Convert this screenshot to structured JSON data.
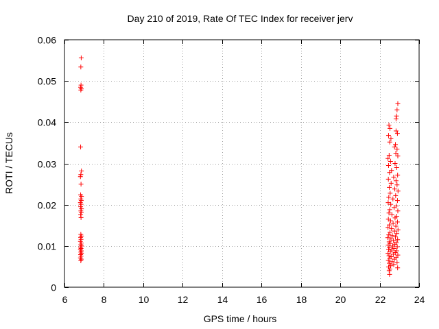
{
  "chart_data": {
    "type": "scatter",
    "title": "Day 210 of 2019, Rate Of TEC Index for receiver jerv",
    "xlabel": "GPS time / hours",
    "ylabel": "ROTI / TECUs",
    "xlim": [
      6,
      24
    ],
    "ylim": [
      0,
      0.06
    ],
    "xticks": [
      6,
      8,
      10,
      12,
      14,
      16,
      18,
      20,
      22,
      24
    ],
    "xtick_labels": [
      "6",
      "8",
      "10",
      "12",
      "14",
      "16",
      "18",
      "20",
      "22",
      "24"
    ],
    "yticks": [
      0,
      0.01,
      0.02,
      0.03,
      0.04,
      0.05,
      0.06
    ],
    "ytick_labels": [
      "0",
      "0.01",
      "0.02",
      "0.03",
      "0.04",
      "0.05",
      "0.06"
    ],
    "grid": true,
    "marker": "+",
    "color": "#ff0000",
    "series": [
      {
        "name": "ROTI",
        "points": [
          [
            6.85,
            0.0556
          ],
          [
            6.83,
            0.0534
          ],
          [
            6.84,
            0.049
          ],
          [
            6.82,
            0.0485
          ],
          [
            6.85,
            0.0481
          ],
          [
            6.83,
            0.0478
          ],
          [
            6.82,
            0.034
          ],
          [
            6.86,
            0.0282
          ],
          [
            6.83,
            0.0273
          ],
          [
            6.81,
            0.0268
          ],
          [
            6.84,
            0.025
          ],
          [
            6.82,
            0.0224
          ],
          [
            6.86,
            0.022
          ],
          [
            6.83,
            0.0214
          ],
          [
            6.85,
            0.021
          ],
          [
            6.81,
            0.0205
          ],
          [
            6.84,
            0.0201
          ],
          [
            6.82,
            0.0195
          ],
          [
            6.86,
            0.019
          ],
          [
            6.83,
            0.0185
          ],
          [
            6.85,
            0.0181
          ],
          [
            6.82,
            0.0176
          ],
          [
            6.84,
            0.0169
          ],
          [
            6.83,
            0.0128
          ],
          [
            6.86,
            0.0124
          ],
          [
            6.82,
            0.0121
          ],
          [
            6.84,
            0.0116
          ],
          [
            6.81,
            0.0111
          ],
          [
            6.85,
            0.0107
          ],
          [
            6.83,
            0.0103
          ],
          [
            6.86,
            0.01
          ],
          [
            6.82,
            0.0097
          ],
          [
            6.84,
            0.0094
          ],
          [
            6.81,
            0.0091
          ],
          [
            6.85,
            0.0088
          ],
          [
            6.83,
            0.0085
          ],
          [
            6.86,
            0.0082
          ],
          [
            6.82,
            0.0079
          ],
          [
            6.84,
            0.0075
          ],
          [
            6.81,
            0.0071
          ],
          [
            6.85,
            0.0068
          ],
          [
            6.83,
            0.0064
          ],
          [
            22.92,
            0.0445
          ],
          [
            22.88,
            0.043
          ],
          [
            22.85,
            0.0415
          ],
          [
            22.83,
            0.0408
          ],
          [
            22.47,
            0.0393
          ],
          [
            22.52,
            0.0385
          ],
          [
            22.83,
            0.0379
          ],
          [
            22.9,
            0.0373
          ],
          [
            22.45,
            0.0368
          ],
          [
            22.57,
            0.036
          ],
          [
            22.51,
            0.0352
          ],
          [
            22.8,
            0.0346
          ],
          [
            22.75,
            0.034
          ],
          [
            22.88,
            0.0335
          ],
          [
            22.82,
            0.0325
          ],
          [
            22.48,
            0.032
          ],
          [
            22.92,
            0.0318
          ],
          [
            22.42,
            0.0312
          ],
          [
            22.55,
            0.0305
          ],
          [
            22.78,
            0.03
          ],
          [
            22.45,
            0.0295
          ],
          [
            22.86,
            0.029
          ],
          [
            22.6,
            0.0283
          ],
          [
            22.5,
            0.0278
          ],
          [
            22.91,
            0.0272
          ],
          [
            22.71,
            0.0267
          ],
          [
            22.44,
            0.0262
          ],
          [
            22.83,
            0.0258
          ],
          [
            22.58,
            0.0252
          ],
          [
            22.88,
            0.0248
          ],
          [
            22.49,
            0.0242
          ],
          [
            22.76,
            0.0238
          ],
          [
            22.93,
            0.0233
          ],
          [
            22.53,
            0.0228
          ],
          [
            22.81,
            0.0222
          ],
          [
            22.46,
            0.0218
          ],
          [
            22.67,
            0.0214
          ],
          [
            22.9,
            0.021
          ],
          [
            22.43,
            0.0205
          ],
          [
            22.56,
            0.0201
          ],
          [
            22.84,
            0.0197
          ],
          [
            22.73,
            0.0193
          ],
          [
            22.51,
            0.0188
          ],
          [
            22.92,
            0.0185
          ],
          [
            22.47,
            0.018
          ],
          [
            22.62,
            0.0176
          ],
          [
            22.86,
            0.0172
          ],
          [
            22.78,
            0.0168
          ],
          [
            22.44,
            0.0165
          ],
          [
            22.55,
            0.0161
          ],
          [
            22.9,
            0.0158
          ],
          [
            22.68,
            0.0155
          ],
          [
            22.49,
            0.0151
          ],
          [
            22.82,
            0.0148
          ],
          [
            22.42,
            0.0145
          ],
          [
            22.6,
            0.0142
          ],
          [
            22.93,
            0.0139
          ],
          [
            22.75,
            0.0136
          ],
          [
            22.52,
            0.0133
          ],
          [
            22.87,
            0.013
          ],
          [
            22.46,
            0.0127
          ],
          [
            22.64,
            0.0125
          ],
          [
            22.8,
            0.0122
          ],
          [
            22.41,
            0.012
          ],
          [
            22.57,
            0.0117
          ],
          [
            22.91,
            0.0115
          ],
          [
            22.7,
            0.0113
          ],
          [
            22.48,
            0.011
          ],
          [
            22.84,
            0.0108
          ],
          [
            22.53,
            0.0106
          ],
          [
            22.77,
            0.0104
          ],
          [
            22.43,
            0.0102
          ],
          [
            22.66,
            0.01
          ],
          [
            22.89,
            0.0098
          ],
          [
            22.5,
            0.0096
          ],
          [
            22.72,
            0.0094
          ],
          [
            22.45,
            0.0092
          ],
          [
            22.61,
            0.009
          ],
          [
            22.86,
            0.0088
          ],
          [
            22.54,
            0.0086
          ],
          [
            22.79,
            0.0084
          ],
          [
            22.42,
            0.0082
          ],
          [
            22.69,
            0.008
          ],
          [
            22.92,
            0.0078
          ],
          [
            22.47,
            0.0076
          ],
          [
            22.58,
            0.0074
          ],
          [
            22.83,
            0.0072
          ],
          [
            22.51,
            0.007
          ],
          [
            22.74,
            0.0068
          ],
          [
            22.44,
            0.0065
          ],
          [
            22.63,
            0.0062
          ],
          [
            22.88,
            0.006
          ],
          [
            22.49,
            0.0058
          ],
          [
            22.71,
            0.0055
          ],
          [
            22.56,
            0.0052
          ],
          [
            22.45,
            0.0049
          ],
          [
            22.91,
            0.0047
          ],
          [
            22.52,
            0.0044
          ],
          [
            22.48,
            0.004
          ],
          [
            22.5,
            0.0031
          ]
        ]
      }
    ]
  }
}
